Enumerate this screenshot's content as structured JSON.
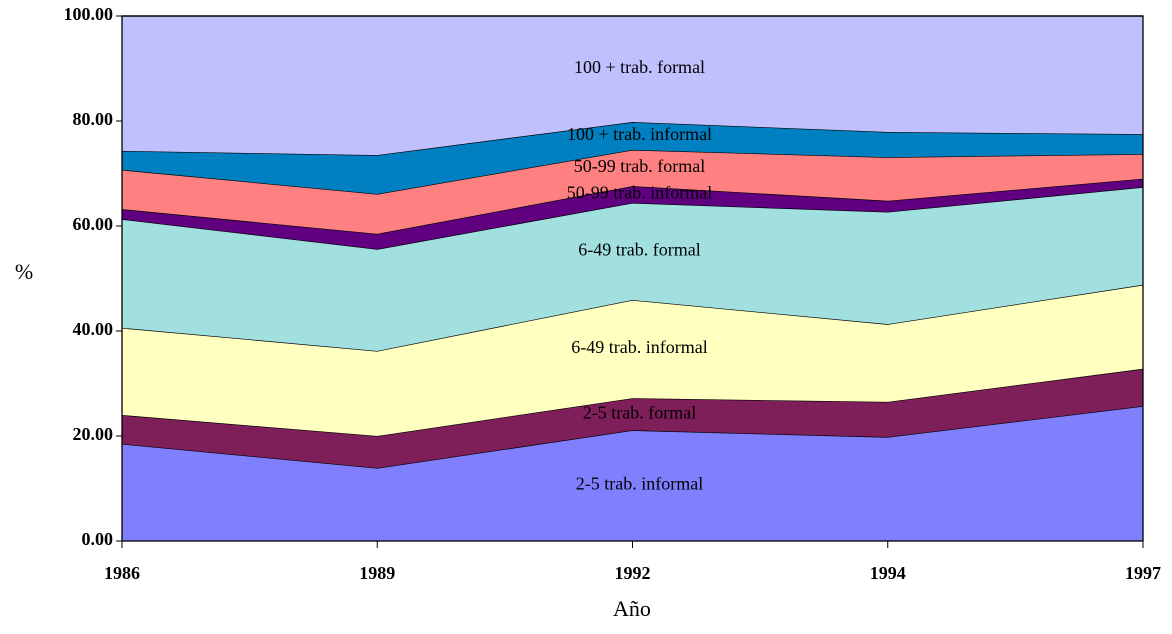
{
  "chart_data": {
    "type": "stacked-area",
    "x_label": "Año",
    "y_label": "%",
    "categories": [
      "1986",
      "1989",
      "1992",
      "1994",
      "1997"
    ],
    "ylim": [
      0,
      100
    ],
    "yticks": [
      {
        "value": 0,
        "label": "0.00"
      },
      {
        "value": 20,
        "label": "20.00"
      },
      {
        "value": 40,
        "label": "40.00"
      },
      {
        "value": 60,
        "label": "60.00"
      },
      {
        "value": 80,
        "label": "80.00"
      },
      {
        "value": 100,
        "label": "100.00"
      }
    ],
    "series": [
      {
        "name": "2-5 trab. informal",
        "color": "#8080ff",
        "values": [
          18.5,
          13.9,
          21.1,
          19.8,
          25.7
        ]
      },
      {
        "name": "2-5 trab. formal",
        "color": "#7f1f5a",
        "values": [
          5.5,
          6.1,
          6.1,
          6.7,
          7.1
        ]
      },
      {
        "name": "6-49 trab. informal",
        "color": "#ffffc0",
        "values": [
          16.6,
          16.2,
          18.7,
          14.8,
          16.0
        ]
      },
      {
        "name": "6-49 trab. formal",
        "color": "#a2e0e0",
        "values": [
          20.7,
          19.4,
          18.5,
          21.4,
          18.6
        ]
      },
      {
        "name": "50-99 trab. informal",
        "color": "#600080",
        "values": [
          1.9,
          2.9,
          3.2,
          2.1,
          1.6
        ]
      },
      {
        "name": "50-99 trab. formal",
        "color": "#ff8080",
        "values": [
          7.5,
          7.6,
          6.9,
          8.3,
          4.7
        ]
      },
      {
        "name": "100 + trab. informal",
        "color": "#0080c0",
        "values": [
          3.6,
          7.4,
          5.3,
          4.8,
          3.8
        ]
      },
      {
        "name": "100 + trab. formal",
        "color": "#c0c0ff",
        "values": [
          25.7,
          26.5,
          20.2,
          22.1,
          22.5
        ]
      }
    ]
  }
}
